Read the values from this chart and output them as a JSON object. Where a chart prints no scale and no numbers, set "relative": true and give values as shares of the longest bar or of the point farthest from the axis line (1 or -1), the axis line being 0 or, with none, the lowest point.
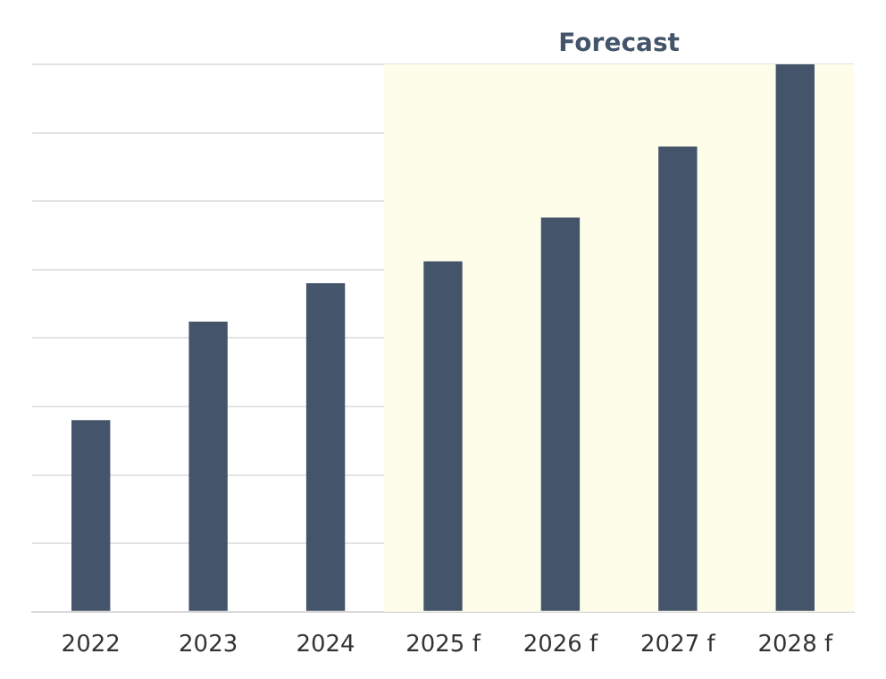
{
  "chart_data": {
    "type": "bar",
    "relative": true,
    "categories": [
      "2022",
      "2023",
      "2024",
      "2025 f",
      "2026 f",
      "2027 f",
      "2028 f"
    ],
    "values": [
      0.35,
      0.53,
      0.6,
      0.64,
      0.72,
      0.85,
      1
    ],
    "color": "#44546a",
    "grid": "y",
    "bands": [
      {
        "axis": "x",
        "from": "2025 f",
        "to": "2028 f",
        "label": "Forecast",
        "color": "#fdfdea"
      }
    ]
  }
}
